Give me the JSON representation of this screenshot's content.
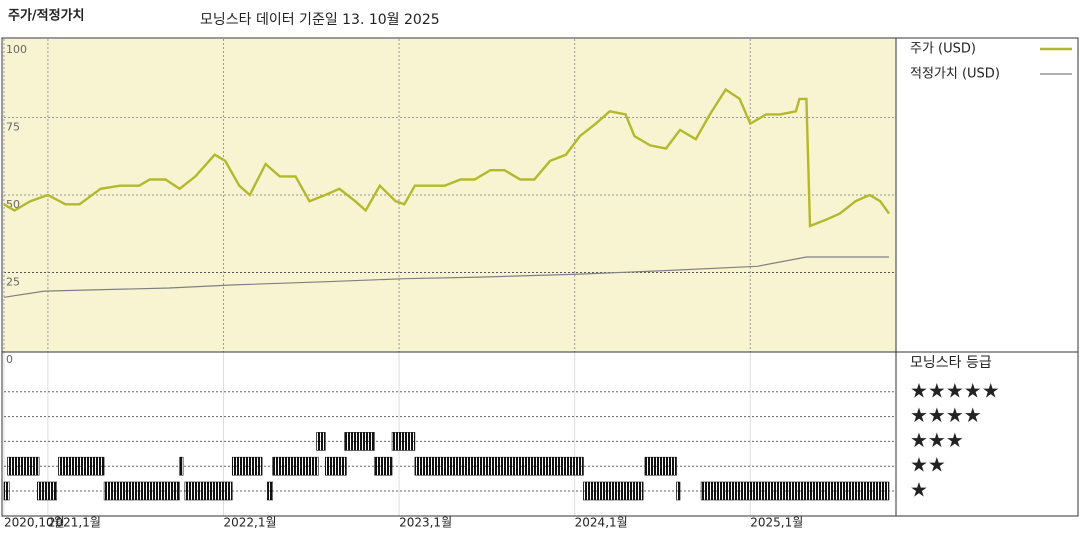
{
  "chart_data": {
    "type": "line",
    "title": "주가/적정가치",
    "subtitle": "모닝스타 데이터 기준일 13. 10월 2025",
    "xlim": [
      2020.75,
      2025.83
    ],
    "xticks": [
      {
        "value": 2020.75,
        "label": "2020,10월"
      },
      {
        "value": 2021,
        "label": "2021,1월"
      },
      {
        "value": 2022,
        "label": "2022,1월"
      },
      {
        "value": 2023,
        "label": "2023,1월"
      },
      {
        "value": 2024,
        "label": "2024,1월"
      },
      {
        "value": 2025,
        "label": "2025,1월"
      }
    ],
    "ylim": [
      0,
      100
    ],
    "yticks": [
      0,
      25,
      50,
      75,
      100
    ],
    "grid": true,
    "background": "#f8f4d2",
    "series": [
      {
        "name": "주가 (USD)",
        "color": "#b4b82c",
        "x": [
          2020.75,
          2020.81,
          2020.9,
          2021.0,
          2021.1,
          2021.18,
          2021.3,
          2021.41,
          2021.52,
          2021.58,
          2021.67,
          2021.75,
          2021.84,
          2021.95,
          2022.01,
          2022.09,
          2022.15,
          2022.24,
          2022.32,
          2022.41,
          2022.49,
          2022.58,
          2022.66,
          2022.75,
          2022.81,
          2022.89,
          2022.98,
          2023.03,
          2023.09,
          2023.18,
          2023.26,
          2023.35,
          2023.43,
          2023.52,
          2023.6,
          2023.69,
          2023.77,
          2023.86,
          2023.95,
          2024.03,
          2024.12,
          2024.2,
          2024.29,
          2024.34,
          2024.43,
          2024.52,
          2024.6,
          2024.69,
          2024.77,
          2024.86,
          2024.94,
          2025.0,
          2025.09,
          2025.17,
          2025.26,
          2025.28,
          2025.32,
          2025.34,
          2025.43,
          2025.51,
          2025.6,
          2025.68,
          2025.74,
          2025.79
        ],
        "values": [
          47,
          45,
          48,
          50,
          47,
          47,
          52,
          53,
          53,
          55,
          55,
          52,
          56,
          63,
          61,
          53,
          50,
          60,
          56,
          56,
          48,
          50,
          52,
          48,
          45,
          53,
          48,
          47,
          53,
          53,
          53,
          55,
          55,
          58,
          58,
          55,
          55,
          61,
          63,
          69,
          73,
          77,
          76,
          69,
          66,
          65,
          71,
          68,
          76,
          84,
          81,
          73,
          76,
          76,
          77,
          81,
          81,
          40,
          42,
          44,
          48,
          50,
          48,
          44
        ]
      },
      {
        "name": "적정가치 (USD)",
        "color": "#808080",
        "x": [
          2020.75,
          2020.98,
          2021.69,
          2022.06,
          2022.57,
          2023.03,
          2023.46,
          2024.03,
          2024.48,
          2025.04,
          2025.32,
          2025.79
        ],
        "values": [
          17,
          19,
          20,
          21,
          22,
          23,
          23.5,
          24.5,
          25.5,
          27,
          30,
          30
        ]
      }
    ],
    "rating": {
      "title": "모닝스타 등급",
      "levels": [
        5,
        4,
        3,
        2,
        1
      ],
      "level_labels": [
        "★★★★★",
        "★★★★",
        "★★★",
        "★★",
        "★"
      ],
      "color": "#111",
      "periods": {
        "start": [
          2020.75,
          2020.94,
          2021.32,
          2021.78,
          2022.25,
          2024.05,
          2024.58,
          2024.72,
          2020.77,
          2021.06,
          2021.75,
          2022.05,
          2022.28,
          2022.58,
          2022.86,
          2023.09,
          2024.4,
          2022.53,
          2022.69,
          2022.96
        ],
        "end": [
          2020.78,
          2021.05,
          2021.75,
          2022.05,
          2022.28,
          2024.39,
          2024.6,
          2025.79,
          2020.95,
          2021.32,
          2021.77,
          2022.22,
          2022.54,
          2022.7,
          2022.96,
          2024.05,
          2024.58,
          2022.58,
          2022.86,
          2023.09
        ],
        "stars": [
          1,
          1,
          1,
          1,
          1,
          1,
          1,
          1,
          2,
          2,
          2,
          2,
          2,
          2,
          2,
          2,
          2,
          3,
          3,
          3
        ]
      }
    }
  }
}
